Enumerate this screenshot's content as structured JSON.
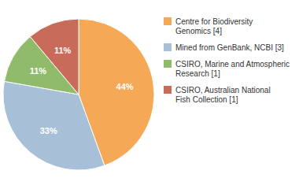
{
  "chart_data": {
    "type": "pie",
    "categories": [
      "Centre for Biodiversity\nGenomics [4]",
      "Mined from GenBank, NCBI [3]",
      "CSIRO, Marine and Atmospheric\nResearch [1]",
      "CSIRO, Australian National\nFish Collection [1]"
    ],
    "values": [
      44,
      33,
      11,
      11
    ],
    "value_labels": [
      "44%",
      "33%",
      "11%",
      "11%"
    ],
    "colors": [
      "#F5A855",
      "#A8BFD8",
      "#8FBB6A",
      "#C96B5A"
    ],
    "data_labels": true,
    "legend": "right"
  }
}
